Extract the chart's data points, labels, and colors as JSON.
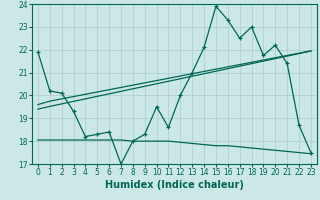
{
  "title": "",
  "xlabel": "Humidex (Indice chaleur)",
  "ylabel": "",
  "background_color": "#cce8e6",
  "grid_color": "#aaccca",
  "line_color": "#006655",
  "x": [
    0,
    1,
    2,
    3,
    4,
    5,
    6,
    7,
    8,
    9,
    10,
    11,
    12,
    13,
    14,
    15,
    16,
    17,
    18,
    19,
    20,
    21,
    22,
    23
  ],
  "series_main": [
    21.9,
    20.2,
    20.1,
    19.3,
    18.2,
    18.3,
    18.4,
    17.0,
    18.0,
    18.3,
    19.5,
    18.6,
    20.0,
    21.0,
    22.1,
    23.9,
    23.3,
    22.5,
    23.0,
    21.75,
    22.2,
    21.4,
    18.7,
    17.5
  ],
  "series_linear1": [
    19.6,
    19.75,
    19.85,
    19.95,
    20.05,
    20.15,
    20.25,
    20.35,
    20.45,
    20.55,
    20.65,
    20.75,
    20.85,
    20.95,
    21.05,
    21.15,
    21.25,
    21.35,
    21.45,
    21.55,
    21.65,
    21.75,
    21.85,
    21.95
  ],
  "series_linear2": [
    19.4,
    19.52,
    19.63,
    19.74,
    19.85,
    19.96,
    20.07,
    20.18,
    20.29,
    20.4,
    20.51,
    20.62,
    20.73,
    20.84,
    20.95,
    21.06,
    21.17,
    21.28,
    21.39,
    21.5,
    21.61,
    21.72,
    21.83,
    21.94
  ],
  "series_flat": [
    18.05,
    18.05,
    18.05,
    18.05,
    18.05,
    18.05,
    18.05,
    18.05,
    18.0,
    18.0,
    18.0,
    18.0,
    17.95,
    17.9,
    17.85,
    17.8,
    17.8,
    17.75,
    17.7,
    17.65,
    17.6,
    17.55,
    17.5,
    17.45
  ],
  "ylim": [
    17,
    24
  ],
  "xlim": [
    -0.5,
    23.5
  ],
  "yticks": [
    17,
    18,
    19,
    20,
    21,
    22,
    23,
    24
  ],
  "xticks": [
    0,
    1,
    2,
    3,
    4,
    5,
    6,
    7,
    8,
    9,
    10,
    11,
    12,
    13,
    14,
    15,
    16,
    17,
    18,
    19,
    20,
    21,
    22,
    23
  ],
  "xlabel_fontsize": 7,
  "tick_fontsize": 5.5
}
